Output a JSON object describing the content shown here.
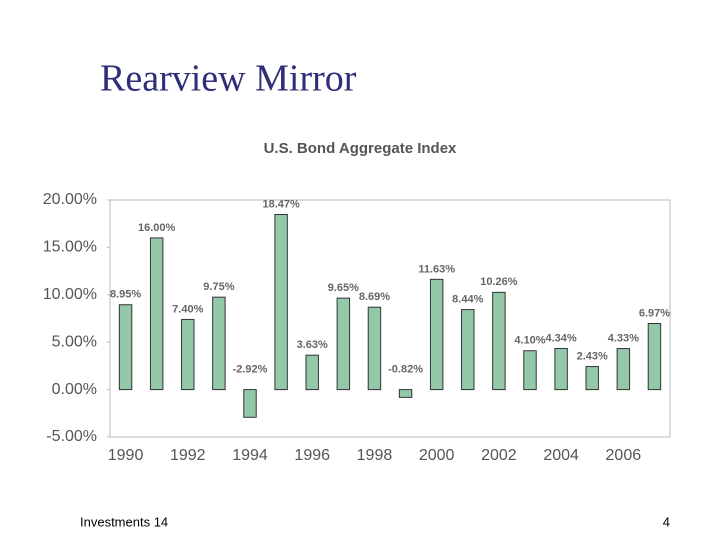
{
  "slide": {
    "title": "Rearview Mirror",
    "footer": "Investments 14",
    "page_number": "4"
  },
  "chart_data": {
    "type": "bar",
    "title": "U.S. Bond Aggregate Index",
    "categories": [
      "1990",
      null,
      "1992",
      null,
      "1994",
      null,
      "1996",
      null,
      "1998",
      null,
      "2000",
      null,
      "2002",
      null,
      "2004",
      null,
      "2006",
      null
    ],
    "values": [
      8.95,
      16.0,
      7.4,
      9.75,
      -2.92,
      18.47,
      3.63,
      9.65,
      8.69,
      -0.82,
      11.63,
      8.44,
      10.26,
      4.1,
      4.34,
      2.43,
      4.33,
      6.97
    ],
    "value_labels": [
      "8.95%",
      "16.00%",
      "7.40%",
      "9.75%",
      "-2.92%",
      "18.47%",
      "3.63%",
      "9.65%",
      "8.69%",
      "-0.82%",
      "11.63%",
      "8.44%",
      "10.26%",
      "4.10%",
      "4.34%",
      "2.43%",
      "4.33%",
      "6.97%"
    ],
    "color": "#93c9a9",
    "ylim": [
      -5,
      20
    ],
    "yticks": [
      {
        "value": -5,
        "label": "-5.00%"
      },
      {
        "value": 0,
        "label": "0.00%"
      },
      {
        "value": 5,
        "label": "5.00%"
      },
      {
        "value": 10,
        "label": "10.00%"
      },
      {
        "value": 15,
        "label": "15.00%"
      },
      {
        "value": 20,
        "label": "20.00%"
      }
    ],
    "grid": false
  }
}
